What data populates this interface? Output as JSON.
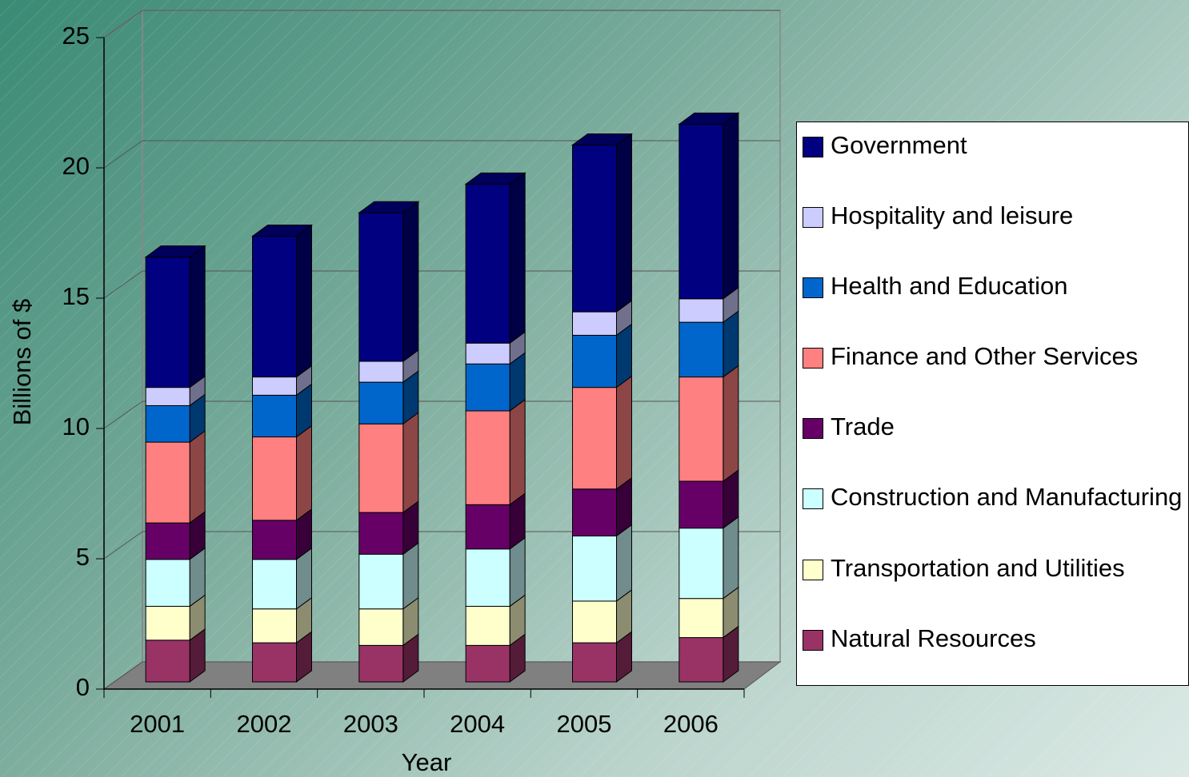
{
  "chart_data": {
    "type": "bar3d_stacked",
    "xlabel": "Year",
    "ylabel": "Billions of $",
    "categories": [
      "2001",
      "2002",
      "2003",
      "2004",
      "2005",
      "2006"
    ],
    "ylim": [
      0,
      25
    ],
    "yticks": [
      0,
      5,
      10,
      15,
      20,
      25
    ],
    "grid": true,
    "series": [
      {
        "name": "Natural Resources",
        "color": "#993366",
        "values": [
          1.6,
          1.5,
          1.4,
          1.4,
          1.5,
          1.7
        ]
      },
      {
        "name": "Transportation and Utilities",
        "color": "#ffffcc",
        "values": [
          1.3,
          1.3,
          1.4,
          1.5,
          1.6,
          1.5
        ]
      },
      {
        "name": "Construction and Manufacturing",
        "color": "#ccffff",
        "values": [
          1.8,
          1.9,
          2.1,
          2.2,
          2.5,
          2.7
        ]
      },
      {
        "name": "Trade",
        "color": "#660066",
        "values": [
          1.4,
          1.5,
          1.6,
          1.7,
          1.8,
          1.8
        ]
      },
      {
        "name": "Finance and Other Services",
        "color": "#ff8080",
        "values": [
          3.1,
          3.2,
          3.4,
          3.6,
          3.9,
          4.0
        ]
      },
      {
        "name": "Health and Education",
        "color": "#0066cc",
        "values": [
          1.4,
          1.6,
          1.6,
          1.8,
          2.0,
          2.1
        ]
      },
      {
        "name": "Hospitality and leisure",
        "color": "#ccccff",
        "values": [
          0.7,
          0.7,
          0.8,
          0.8,
          0.9,
          0.9
        ]
      },
      {
        "name": "Government",
        "color": "#000080",
        "values": [
          5.0,
          5.4,
          5.7,
          6.1,
          6.4,
          6.7
        ]
      }
    ]
  }
}
